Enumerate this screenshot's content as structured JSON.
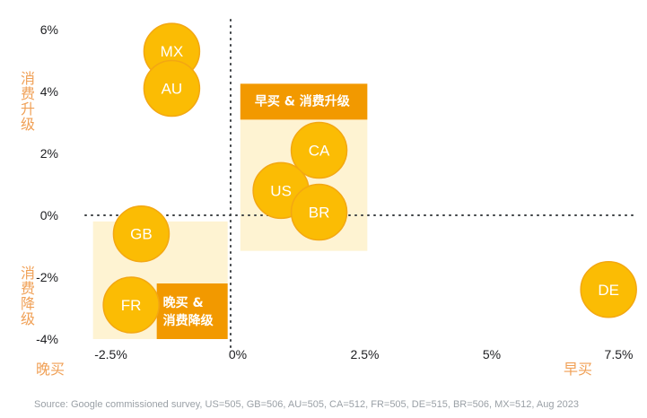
{
  "chart_data": {
    "type": "scatter",
    "xlim": [
      -0.03,
      0.078
    ],
    "ylim": [
      -0.04,
      0.065
    ],
    "x_ticks": [
      "-2.5%",
      "0%",
      "2.5%",
      "5%",
      "7.5%"
    ],
    "x_tick_values": [
      -0.025,
      0,
      0.025,
      0.05,
      0.075
    ],
    "y_ticks": [
      "6%",
      "4%",
      "2%",
      "0%",
      "-2%",
      "-4%"
    ],
    "y_tick_values": [
      0.06,
      0.04,
      0.02,
      0,
      -0.02,
      -0.04
    ],
    "y_axis_labels": {
      "positive": "消费升级",
      "negative": "消费降级"
    },
    "x_axis_labels": {
      "negative": "晚买",
      "positive": "早买"
    },
    "points": [
      {
        "label": "MX",
        "x": -0.013,
        "y": 0.053
      },
      {
        "label": "AU",
        "x": -0.013,
        "y": 0.041
      },
      {
        "label": "CA",
        "x": 0.016,
        "y": 0.021
      },
      {
        "label": "US",
        "x": 0.0085,
        "y": 0.008
      },
      {
        "label": "BR",
        "x": 0.016,
        "y": 0.001
      },
      {
        "label": "GB",
        "x": -0.019,
        "y": -0.006
      },
      {
        "label": "FR",
        "x": -0.021,
        "y": -0.029
      },
      {
        "label": "DE",
        "x": 0.073,
        "y": -0.024
      }
    ],
    "regions": [
      {
        "label": "早买 & 消费升级",
        "x": [
          0.0005,
          0.0255
        ],
        "y": [
          -0.0115,
          0.0425
        ]
      },
      {
        "label": "晚买 &\n消费降级",
        "x": [
          -0.0285,
          -0.002
        ],
        "y": [
          -0.04,
          -0.002
        ]
      }
    ],
    "colors": {
      "bubble": "#fbbc04",
      "bubble_edge": "#f3a712",
      "region": "#fef3d2",
      "label_box": "#f29900",
      "axis_label": "#f0a056",
      "axis_line": "#3c4043"
    },
    "grid": false
  },
  "footer": {
    "source": "Source: Google commissioned survey, US=505, GB=506, AU=505, CA=512, FR=505, DE=515, BR=506, MX=512, Aug 2023"
  }
}
